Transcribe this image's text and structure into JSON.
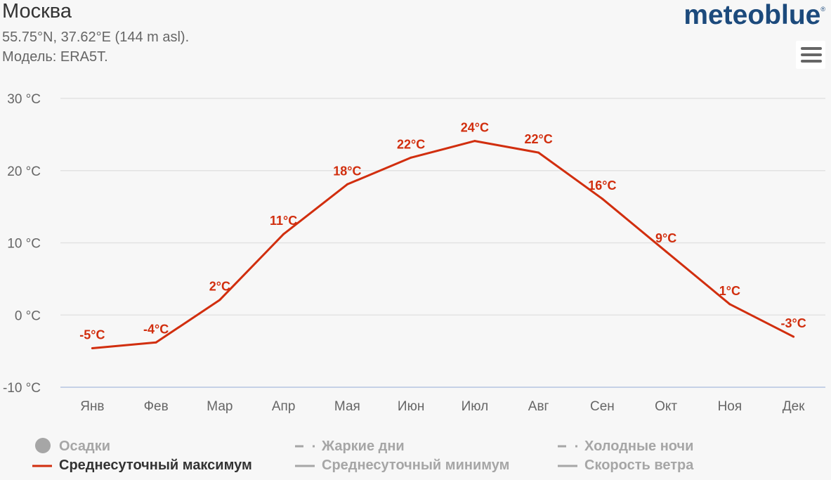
{
  "header": {
    "title": "Москва",
    "coords": "55.75°N, 37.62°E (144 m asl).",
    "model": "Модель: ERA5T.",
    "logo": "meteoblue",
    "logo_mark": "®"
  },
  "menu": {
    "icon": "hamburger-menu-icon"
  },
  "colors": {
    "line": "#d12e0e",
    "grid": "#e3e3e3",
    "axis": "#c5d1e6",
    "label": "#666666"
  },
  "chart_data": {
    "type": "line",
    "categories": [
      "Янв",
      "Фев",
      "Мар",
      "Апр",
      "Мая",
      "Июн",
      "Июл",
      "Авг",
      "Сен",
      "Окт",
      "Ноя",
      "Дек"
    ],
    "series": [
      {
        "name": "Среднесуточный максимум",
        "values": [
          -4.6,
          -3.8,
          2.1,
          11.2,
          18.1,
          21.8,
          24.1,
          22.5,
          16.1,
          8.8,
          1.5,
          -3.0
        ],
        "labels": [
          "-5°C",
          "-4°C",
          "2°C",
          "11°C",
          "18°C",
          "22°C",
          "24°C",
          "22°C",
          "16°C",
          "9°C",
          "1°C",
          "-3°C"
        ]
      }
    ],
    "yticks": [
      "30 °C",
      "20 °C",
      "10 °C",
      "0 °C",
      "-10 °C"
    ],
    "ytick_values": [
      30,
      20,
      10,
      0,
      -10
    ],
    "ylim": [
      -10,
      30
    ],
    "grid": true,
    "legend_position": "bottom"
  },
  "legend": [
    {
      "label": "Осадки",
      "icon": "circle-icon",
      "active": false
    },
    {
      "label": "Жаркие дни",
      "icon": "dash-dot-icon",
      "active": false
    },
    {
      "label": "Холодные ночи",
      "icon": "dash-dot-icon",
      "active": false
    },
    {
      "label": "Среднесуточный максимум",
      "icon": "line-icon",
      "active": true
    },
    {
      "label": "Среднесуточный минимум",
      "icon": "line-icon",
      "active": false
    },
    {
      "label": "Скорость ветра",
      "icon": "line-icon",
      "active": false
    }
  ]
}
